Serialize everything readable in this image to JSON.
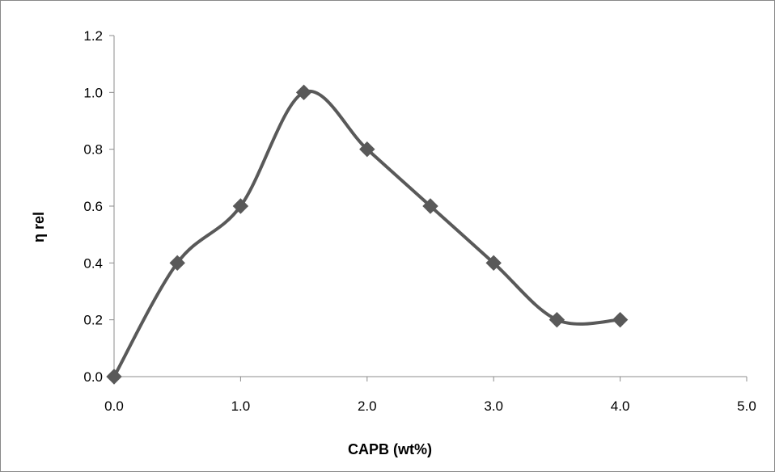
{
  "chart_data": {
    "type": "scatter",
    "smooth_lines": true,
    "xlabel": "CAPB (wt%)",
    "ylabel": "η rel",
    "xlim": [
      0,
      5
    ],
    "ylim": [
      0,
      1.2
    ],
    "x_ticks": [
      0,
      1,
      2,
      3,
      4,
      5
    ],
    "x_tick_labels": [
      "0.0",
      "1.0",
      "2.0",
      "3.0",
      "4.0",
      "5.0"
    ],
    "y_ticks": [
      0,
      0.2,
      0.4,
      0.6,
      0.8,
      1.0,
      1.2
    ],
    "y_tick_labels": [
      "0.0",
      "0.2",
      "0.4",
      "0.6",
      "0.8",
      "1.0",
      "1.2"
    ],
    "grid": false,
    "legend": "none",
    "series": [
      {
        "marker": "diamond",
        "color": "#595959",
        "x": [
          0.0,
          0.5,
          1.0,
          1.5,
          2.0,
          2.5,
          3.0,
          3.5,
          4.0
        ],
        "y": [
          0.0,
          0.4,
          0.6,
          1.0,
          0.8,
          0.6,
          0.4,
          0.2,
          0.2
        ]
      }
    ]
  }
}
